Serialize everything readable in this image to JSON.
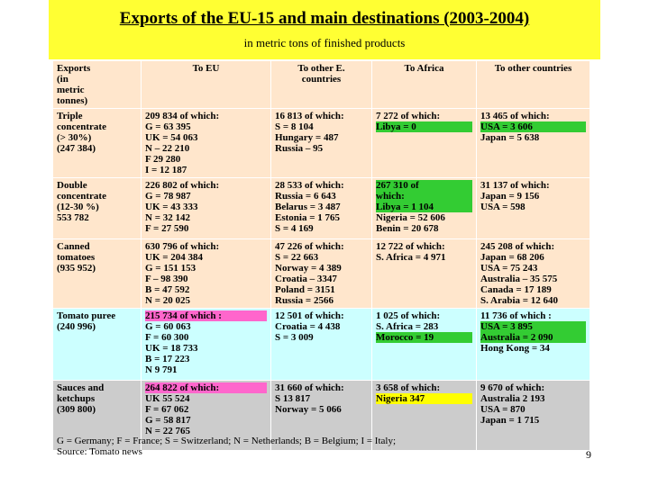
{
  "title": "Exports of the EU-15 and main destinations (2003-2004)",
  "subtitle": "in metric tons of finished products",
  "table": {
    "headers": [
      [
        "Exports",
        "(in",
        "metric",
        "tonnes)"
      ],
      [
        "To EU"
      ],
      [
        "To other E.",
        "countries"
      ],
      [
        "To Africa"
      ],
      [
        "To other countries"
      ]
    ],
    "rows": [
      {
        "bg": "#ffe6cc",
        "cells": [
          [
            "Triple",
            "concentrate",
            "(> 30%)",
            "(247 384)"
          ],
          [
            "209 834 of which:",
            "G = 63 395",
            "UK = 54 063",
            "N – 22 210",
            "F   29 280",
            "I = 12 187"
          ],
          [
            "16 813 of which:",
            "S = 8 104",
            "Hungary = 487",
            "Russia – 95"
          ],
          [
            "7 272 of which:",
            "Libya = 0"
          ],
          [
            "13 465 of which:",
            "USA = 3 606",
            "Japan = 5 638"
          ]
        ],
        "highlights": [
          [
            3,
            1,
            "green"
          ],
          [
            4,
            1,
            "green"
          ]
        ]
      },
      {
        "bg": "#ffe6cc",
        "cells": [
          [
            "Double",
            "concentrate",
            "(12-30 %)",
            "553 782"
          ],
          [
            "226 802 of which:",
            "G = 78 987",
            "UK = 43 333",
            "N = 32 142",
            "F = 27 590"
          ],
          [
            "28 533 of which:",
            "Russia = 6 643",
            "Belarus = 3 487",
            "Estonia = 1 765",
            "S = 4 169"
          ],
          [
            "267 310 of",
            "which:",
            "Libya = 1 104",
            "Nigeria = 52 606",
            "Benin = 20 678"
          ],
          [
            "31 137 of which:",
            "Japan = 9 156",
            "USA = 598"
          ]
        ],
        "highlights": [
          [
            3,
            0,
            "green"
          ],
          [
            3,
            1,
            "green"
          ],
          [
            3,
            2,
            "green"
          ]
        ]
      },
      {
        "bg": "#ffe6cc",
        "cells": [
          [
            "Canned",
            "tomatoes",
            "(935 952)"
          ],
          [
            "630 796 of which:",
            "UK = 204 384",
            "G = 151 153",
            "F – 98 390",
            "B = 47 592",
            "N = 20 025"
          ],
          [
            "47 226 of which:",
            "S = 22 663",
            "Norway = 4 389",
            "Croatia – 3347",
            "Poland = 3151",
            "Russia = 2566"
          ],
          [
            "12 722 of which:",
            "S. Africa = 4 971"
          ],
          [
            "245 208 of which:",
            "Japan = 68 206",
            "USA = 75 243",
            "Australia – 35 575",
            "Canada = 17 189",
            "S. Arabia = 12 640"
          ]
        ],
        "highlights": []
      },
      {
        "bg": "#ccffff",
        "cells": [
          [
            "Tomato puree",
            "(240 996)"
          ],
          [
            "215 734 of which :",
            "G = 60 063",
            "F = 60 300",
            "UK = 18 733",
            "B = 17 223",
            "N   9 791"
          ],
          [
            "12 501 of which:",
            "Croatia = 4 438",
            "S = 3 009"
          ],
          [
            "1 025 of which:",
            "S. Africa = 283",
            "Morocco = 19"
          ],
          [
            "11 736 of which :",
            "USA = 3 895",
            "Australia = 2 090",
            "Hong Kong = 34"
          ]
        ],
        "highlights": [
          [
            1,
            0,
            "pink"
          ],
          [
            3,
            2,
            "green"
          ],
          [
            4,
            1,
            "green"
          ],
          [
            4,
            2,
            "green"
          ]
        ]
      },
      {
        "bg": "#cccccc",
        "cells": [
          [
            "Sauces and",
            "ketchups",
            "(309 800)"
          ],
          [
            "264 822 of which:",
            "UK   55 524",
            "F = 67 062",
            "G = 58 817",
            "N = 22 765"
          ],
          [
            "31 660 of which:",
            "S    13 817",
            "Norway = 5 066"
          ],
          [
            "3 658 of which:",
            "Nigeria    347"
          ],
          [
            "9 670 of which:",
            "Australia    2 193",
            "USA = 870",
            "Japan = 1 715"
          ]
        ],
        "highlights": [
          [
            1,
            0,
            "pink"
          ],
          [
            3,
            1,
            "yellow"
          ]
        ]
      }
    ]
  },
  "footer": {
    "legend": "G = Germany; F = France; S = Switzerland; N = Netherlands; B = Belgium; I = Italy;",
    "source": "Source: Tomato news"
  },
  "page_number": "9"
}
